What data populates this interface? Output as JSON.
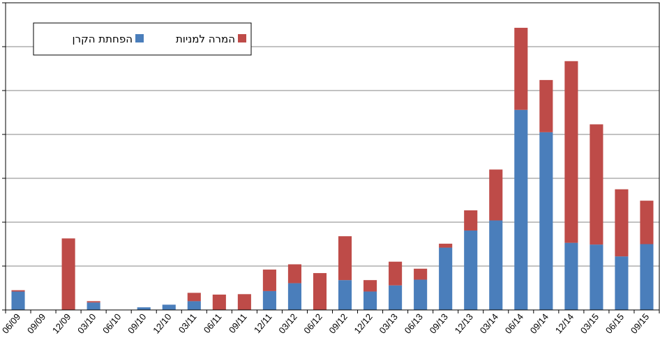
{
  "chart_data": {
    "type": "bar",
    "stacked": true,
    "categories": [
      "06/09",
      "09/09",
      "12/09",
      "03/10",
      "06/10",
      "09/10",
      "12/10",
      "03/11",
      "06/11",
      "09/11",
      "12/11",
      "03/12",
      "06/12",
      "09/12",
      "12/12",
      "03/13",
      "06/13",
      "09/13",
      "12/13",
      "03/14",
      "06/14",
      "09/14",
      "12/14",
      "03/15",
      "06/15",
      "09/15"
    ],
    "series": [
      {
        "name": "הפחתת הקרן",
        "color": "#4a7ebb",
        "values": [
          0.42,
          0,
          0,
          0.17,
          0,
          0.06,
          0.12,
          0.2,
          0,
          0,
          0.43,
          0.61,
          0,
          0.68,
          0.42,
          0.56,
          0.69,
          1.42,
          1.81,
          2.04,
          4.56,
          4.05,
          1.53,
          1.49,
          1.22,
          1.5
        ]
      },
      {
        "name": "המרה למניות",
        "color": "#be4b48",
        "values": [
          0.03,
          0,
          1.63,
          0.03,
          0,
          0,
          0,
          0.19,
          0.35,
          0.36,
          0.49,
          0.43,
          0.84,
          1.0,
          0.26,
          0.54,
          0.25,
          0.09,
          0.46,
          1.16,
          1.87,
          1.19,
          4.14,
          2.74,
          1.53,
          0.99
        ]
      }
    ],
    "ylim": [
      0,
      7
    ],
    "yticks": [
      0,
      1,
      2,
      3,
      4,
      5,
      6,
      7
    ],
    "ytick_labels_visible": false,
    "grid": true,
    "legend_position": "top-left"
  }
}
